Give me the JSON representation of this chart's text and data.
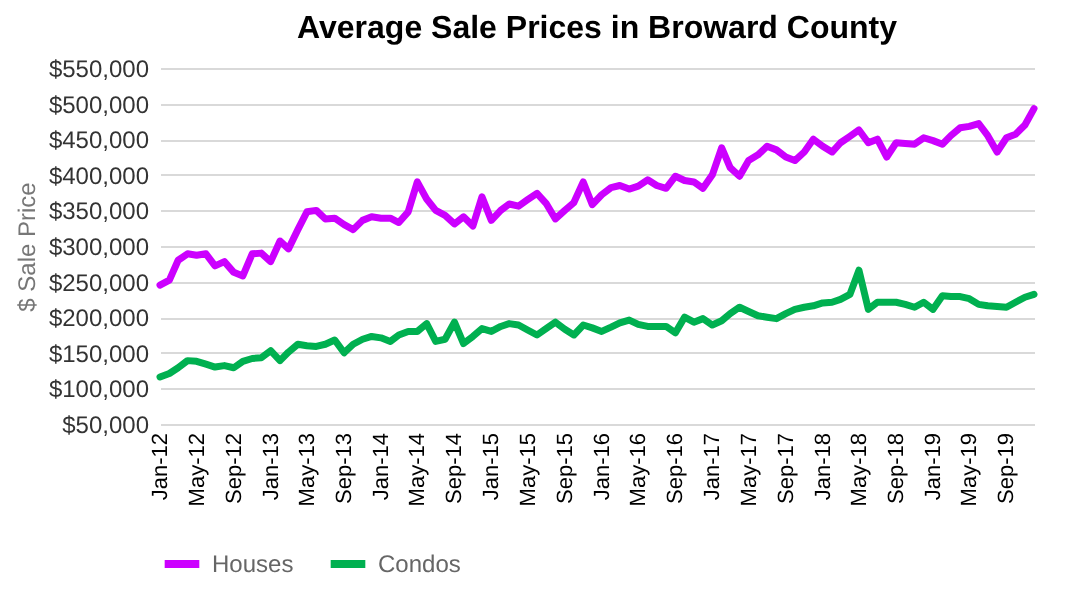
{
  "chart_data": {
    "type": "line",
    "title": "Average Sale Prices in Broward County",
    "ylabel": "$ Sale Price",
    "x": [
      "2012-01",
      "2012-02",
      "2012-03",
      "2012-04",
      "2012-05",
      "2012-06",
      "2012-07",
      "2012-08",
      "2012-09",
      "2012-10",
      "2012-11",
      "2012-12",
      "2013-01",
      "2013-02",
      "2013-03",
      "2013-04",
      "2013-05",
      "2013-06",
      "2013-07",
      "2013-08",
      "2013-09",
      "2013-10",
      "2013-11",
      "2013-12",
      "2014-01",
      "2014-02",
      "2014-03",
      "2014-04",
      "2014-05",
      "2014-06",
      "2014-07",
      "2014-08",
      "2014-09",
      "2014-10",
      "2014-11",
      "2014-12",
      "2015-01",
      "2015-02",
      "2015-03",
      "2015-04",
      "2015-05",
      "2015-06",
      "2015-07",
      "2015-08",
      "2015-09",
      "2015-10",
      "2015-11",
      "2015-12",
      "2016-01",
      "2016-02",
      "2016-03",
      "2016-04",
      "2016-05",
      "2016-06",
      "2016-07",
      "2016-08",
      "2016-09",
      "2016-10",
      "2016-11",
      "2016-12",
      "2017-01",
      "2017-02",
      "2017-03",
      "2017-04",
      "2017-05",
      "2017-06",
      "2017-07",
      "2017-08",
      "2017-09",
      "2017-10",
      "2017-11",
      "2017-12",
      "2018-01",
      "2018-02",
      "2018-03",
      "2018-04",
      "2018-05",
      "2018-06",
      "2018-07",
      "2018-08",
      "2018-09",
      "2018-10",
      "2018-11",
      "2018-12",
      "2019-01",
      "2019-02",
      "2019-03",
      "2019-04",
      "2019-05",
      "2019-06",
      "2019-07",
      "2019-08",
      "2019-09",
      "2019-10",
      "2019-11",
      "2019-12"
    ],
    "series": [
      {
        "name": "Houses",
        "color": "#cc00ff",
        "values": [
          245000,
          252000,
          280000,
          289000,
          287000,
          289000,
          272000,
          278000,
          263000,
          258000,
          289000,
          290000,
          278000,
          307000,
          296000,
          323000,
          348000,
          350000,
          338000,
          339000,
          330000,
          323000,
          336000,
          341000,
          339000,
          339000,
          333000,
          348000,
          390000,
          366000,
          350000,
          343000,
          331000,
          341000,
          328000,
          369000,
          336000,
          350000,
          359000,
          356000,
          365000,
          374000,
          360000,
          338000,
          350000,
          361000,
          390000,
          358000,
          372000,
          382000,
          385000,
          380000,
          384000,
          393000,
          385000,
          381000,
          398000,
          392000,
          390000,
          381000,
          400000,
          438000,
          410000,
          398000,
          420000,
          428000,
          440000,
          435000,
          425000,
          420000,
          432000,
          450000,
          440000,
          432000,
          445000,
          454000,
          463000,
          445000,
          450000,
          425000,
          445000,
          444000,
          443000,
          452000,
          448000,
          443000,
          455000,
          466000,
          468000,
          472000,
          455000,
          432000,
          452000,
          457000,
          470000,
          493000
        ]
      },
      {
        "name": "Condos",
        "color": "#00b050",
        "values": [
          116000,
          121000,
          129000,
          139000,
          138000,
          134000,
          130000,
          132000,
          129000,
          138000,
          142000,
          143000,
          153000,
          139000,
          151000,
          162000,
          160000,
          159000,
          162000,
          168000,
          150000,
          162000,
          169000,
          173000,
          171000,
          166000,
          175000,
          180000,
          180000,
          191000,
          166000,
          169000,
          193000,
          163000,
          173000,
          184000,
          180000,
          187000,
          191000,
          189000,
          182000,
          175000,
          184000,
          193000,
          183000,
          175000,
          189000,
          185000,
          180000,
          186000,
          192000,
          196000,
          190000,
          187000,
          187000,
          187000,
          178000,
          200000,
          193000,
          198000,
          189000,
          195000,
          205000,
          214000,
          208000,
          202000,
          200000,
          198000,
          205000,
          211000,
          214000,
          216000,
          220000,
          221000,
          225000,
          232000,
          266000,
          211000,
          221000,
          221000,
          221000,
          218000,
          214000,
          221000,
          211000,
          230000,
          229000,
          229000,
          226000,
          218000,
          216000,
          215000,
          214000,
          221000,
          228000,
          232000
        ]
      }
    ],
    "xlim": [
      "2012-01",
      "2019-12"
    ],
    "xticks": [
      {
        "value": "2012-01",
        "label": "Jan-12"
      },
      {
        "value": "2012-05",
        "label": "May-12"
      },
      {
        "value": "2012-09",
        "label": "Sep-12"
      },
      {
        "value": "2013-01",
        "label": "Jan-13"
      },
      {
        "value": "2013-05",
        "label": "May-13"
      },
      {
        "value": "2013-09",
        "label": "Sep-13"
      },
      {
        "value": "2014-01",
        "label": "Jan-14"
      },
      {
        "value": "2014-05",
        "label": "May-14"
      },
      {
        "value": "2014-09",
        "label": "Sep-14"
      },
      {
        "value": "2015-01",
        "label": "Jan-15"
      },
      {
        "value": "2015-05",
        "label": "May-15"
      },
      {
        "value": "2015-09",
        "label": "Sep-15"
      },
      {
        "value": "2016-01",
        "label": "Jan-16"
      },
      {
        "value": "2016-05",
        "label": "May-16"
      },
      {
        "value": "2016-09",
        "label": "Sep-16"
      },
      {
        "value": "2017-01",
        "label": "Jan-17"
      },
      {
        "value": "2017-05",
        "label": "May-17"
      },
      {
        "value": "2017-09",
        "label": "Sep-17"
      },
      {
        "value": "2018-01",
        "label": "Jan-18"
      },
      {
        "value": "2018-05",
        "label": "May-18"
      },
      {
        "value": "2018-09",
        "label": "Sep-18"
      },
      {
        "value": "2019-01",
        "label": "Jan-19"
      },
      {
        "value": "2019-05",
        "label": "May-19"
      },
      {
        "value": "2019-09",
        "label": "Sep-19"
      }
    ],
    "ylim": [
      50000,
      550000
    ],
    "yticks": [
      {
        "value": 50000,
        "label": "$50,000"
      },
      {
        "value": 100000,
        "label": "$100,000"
      },
      {
        "value": 150000,
        "label": "$150,000"
      },
      {
        "value": 200000,
        "label": "$200,000"
      },
      {
        "value": 250000,
        "label": "$250,000"
      },
      {
        "value": 300000,
        "label": "$300,000"
      },
      {
        "value": 350000,
        "label": "$350,000"
      },
      {
        "value": 400000,
        "label": "$400,000"
      },
      {
        "value": 450000,
        "label": "$450,000"
      },
      {
        "value": 500000,
        "label": "$500,000"
      },
      {
        "value": 550000,
        "label": "$550,000"
      }
    ],
    "grid": "y",
    "legend": "bottom",
    "marker": "none",
    "line_style": "solid"
  }
}
